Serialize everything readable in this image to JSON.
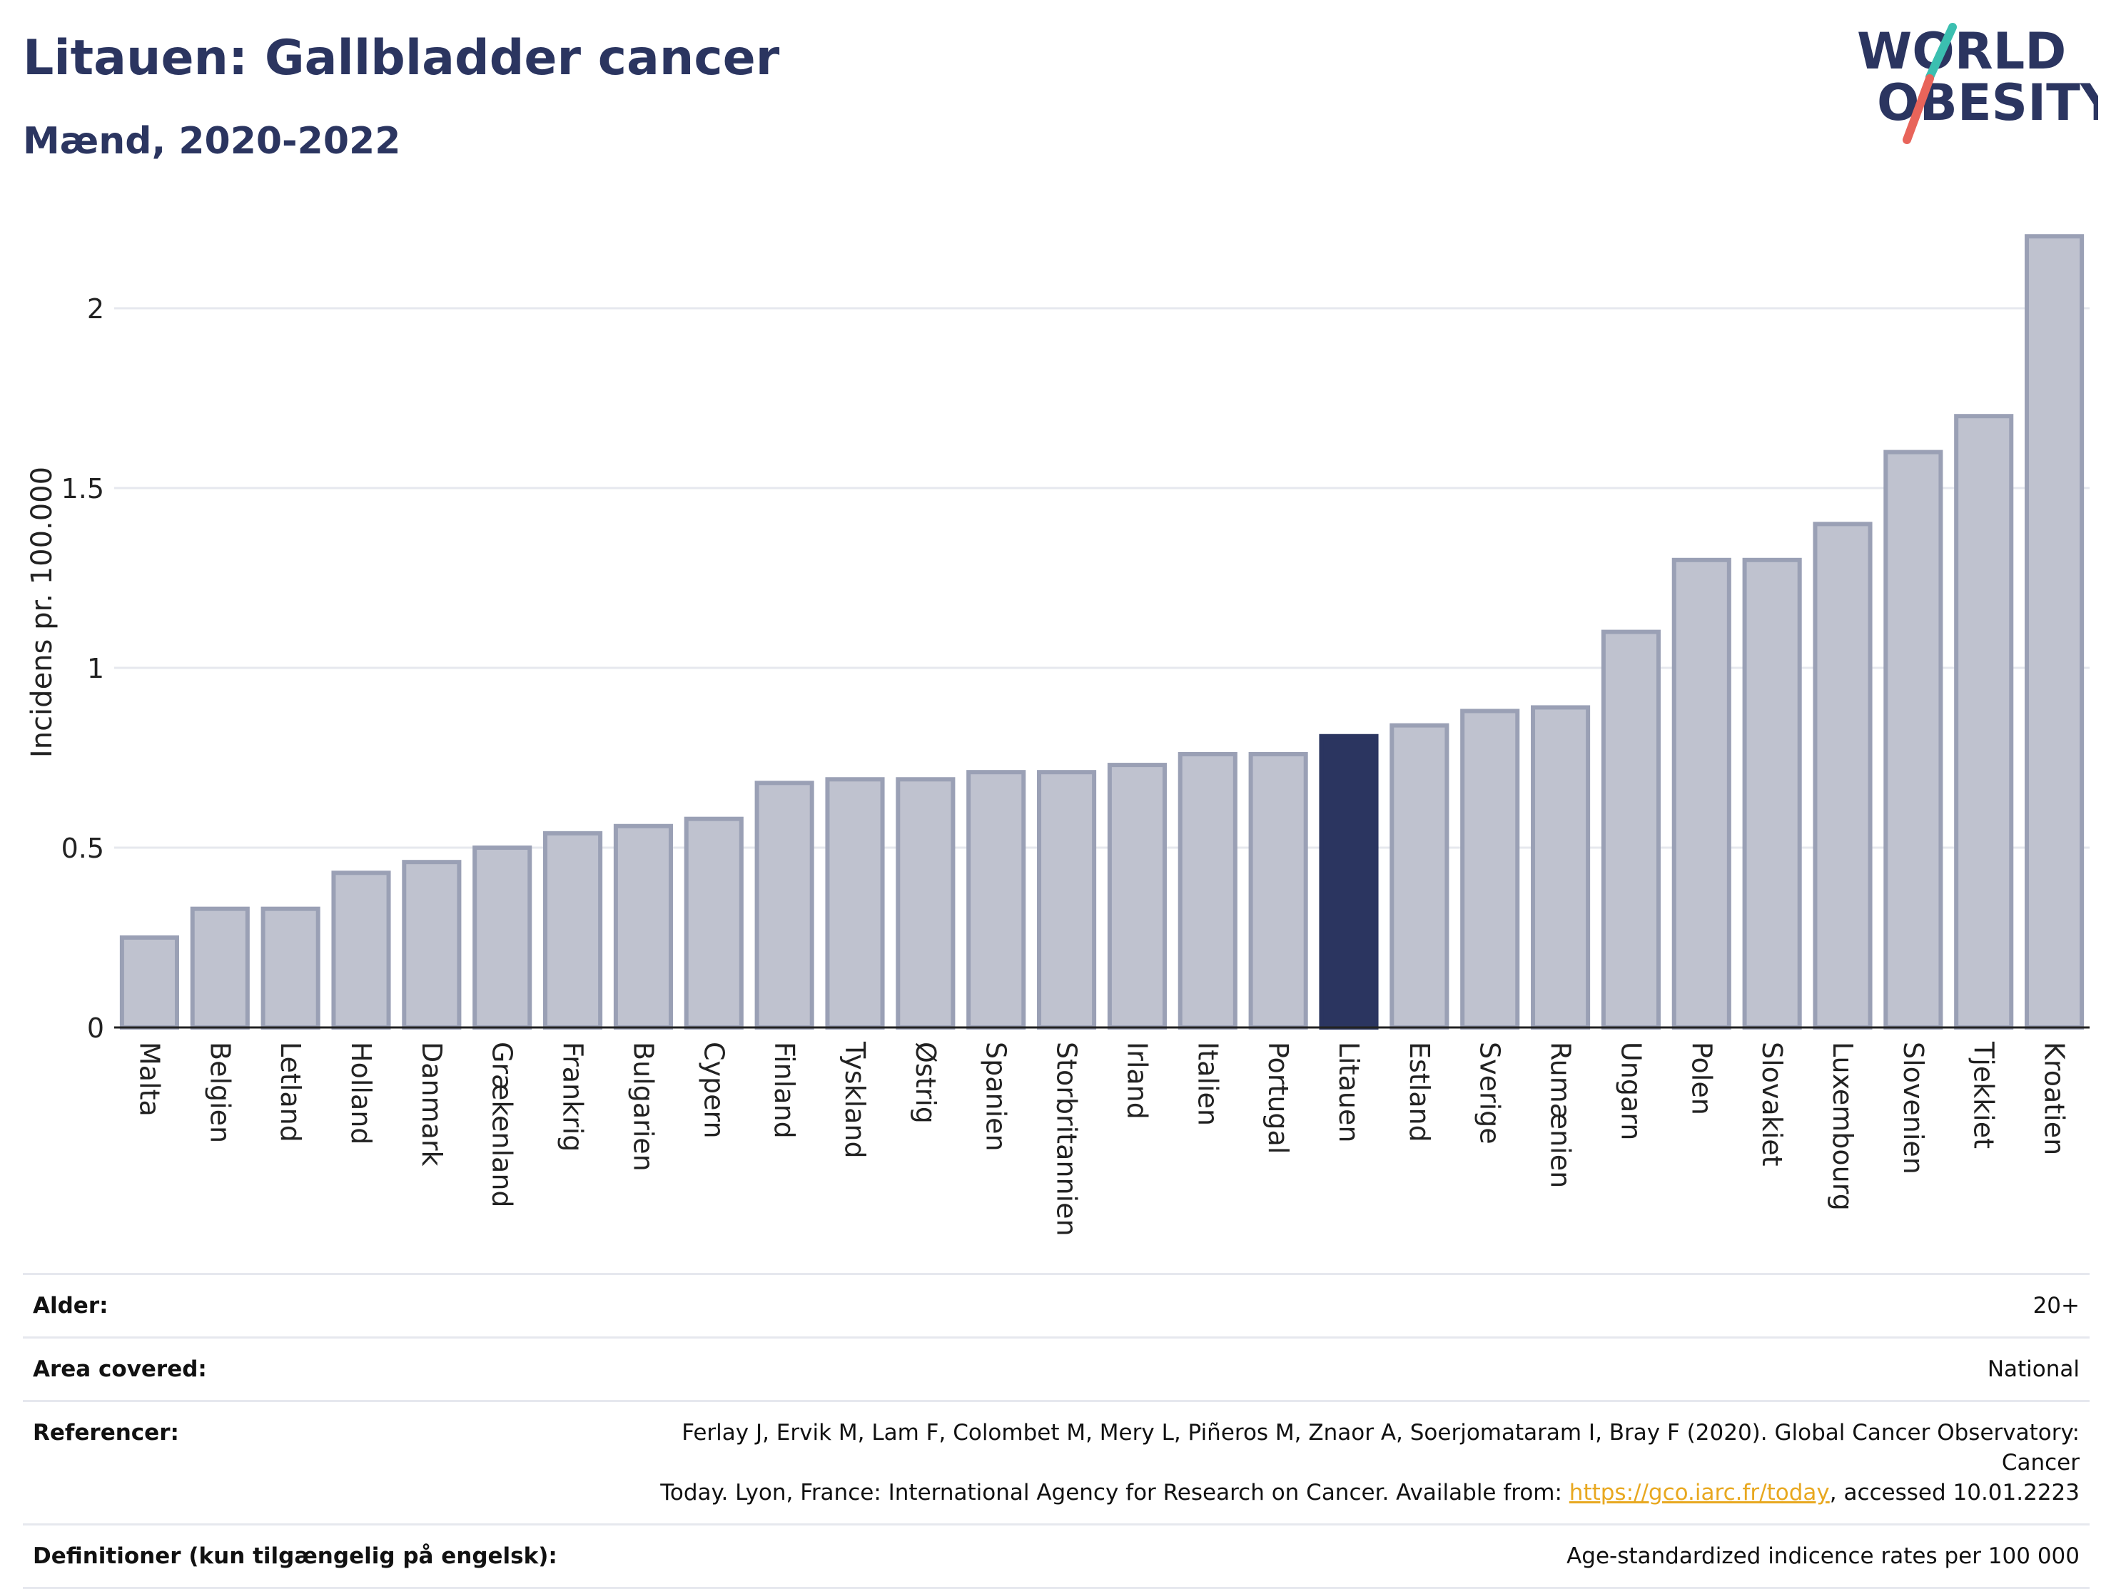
{
  "header": {
    "title": "Litauen: Gallbladder cancer",
    "subtitle": "Mænd, 2020-2022"
  },
  "logo": {
    "line1": "WORLD",
    "line2": "OBESITY",
    "accent_teal": "#3bbfb0",
    "accent_red": "#e8645a",
    "text_color": "#2b3560"
  },
  "colors": {
    "bar_fill": "#bfc2cf",
    "bar_stroke": "#9aa0b5",
    "highlight_fill": "#2b3560",
    "grid": "#e6e8ee",
    "axis": "#222222"
  },
  "chart_data": {
    "type": "bar",
    "title": "Litauen: Gallbladder cancer",
    "subtitle": "Mænd, 2020-2022",
    "xlabel": "",
    "ylabel": "Incidens pr. 100.000",
    "ylim": [
      0,
      2.25
    ],
    "yticks": [
      0,
      0.5,
      1,
      1.5,
      2
    ],
    "ytick_labels": [
      "0",
      "0.5",
      "1",
      "1.5",
      "2"
    ],
    "grid": true,
    "highlight": "Litauen",
    "categories": [
      "Malta",
      "Belgien",
      "Letland",
      "Holland",
      "Danmark",
      "Grækenland",
      "Frankrig",
      "Bulgarien",
      "Cypern",
      "Finland",
      "Tyskland",
      "Østrig",
      "Spanien",
      "Storbritannien",
      "Irland",
      "Italien",
      "Portugal",
      "Litauen",
      "Estland",
      "Sverige",
      "Rumænien",
      "Ungarn",
      "Polen",
      "Slovakiet",
      "Luxembourg",
      "Slovenien",
      "Tjekkiet",
      "Kroatien"
    ],
    "values": [
      0.25,
      0.33,
      0.33,
      0.43,
      0.46,
      0.5,
      0.54,
      0.56,
      0.58,
      0.68,
      0.69,
      0.69,
      0.71,
      0.71,
      0.73,
      0.76,
      0.76,
      0.81,
      0.84,
      0.88,
      0.89,
      1.1,
      1.3,
      1.3,
      1.4,
      1.6,
      1.7,
      2.2
    ]
  },
  "footer": {
    "age_label": "Alder:",
    "age_value": "20+",
    "area_label": "Area covered:",
    "area_value": "National",
    "ref_label": "Referencer:",
    "ref_line1": "Ferlay J, Ervik M, Lam F, Colombet M, Mery L, Piñeros M, Znaor A, Soerjomataram I, Bray F (2020). Global Cancer Observatory: Cancer",
    "ref_line2_pre": "Today. Lyon, France: International Agency for Research on Cancer. Available from: ",
    "ref_link": "https://gco.iarc.fr/today",
    "ref_line2_post": ", accessed 10.01.2223",
    "def_label": "Definitioner (kun tilgængelig på engelsk):",
    "def_value": "Age-standardized indicence rates per 100 000"
  }
}
